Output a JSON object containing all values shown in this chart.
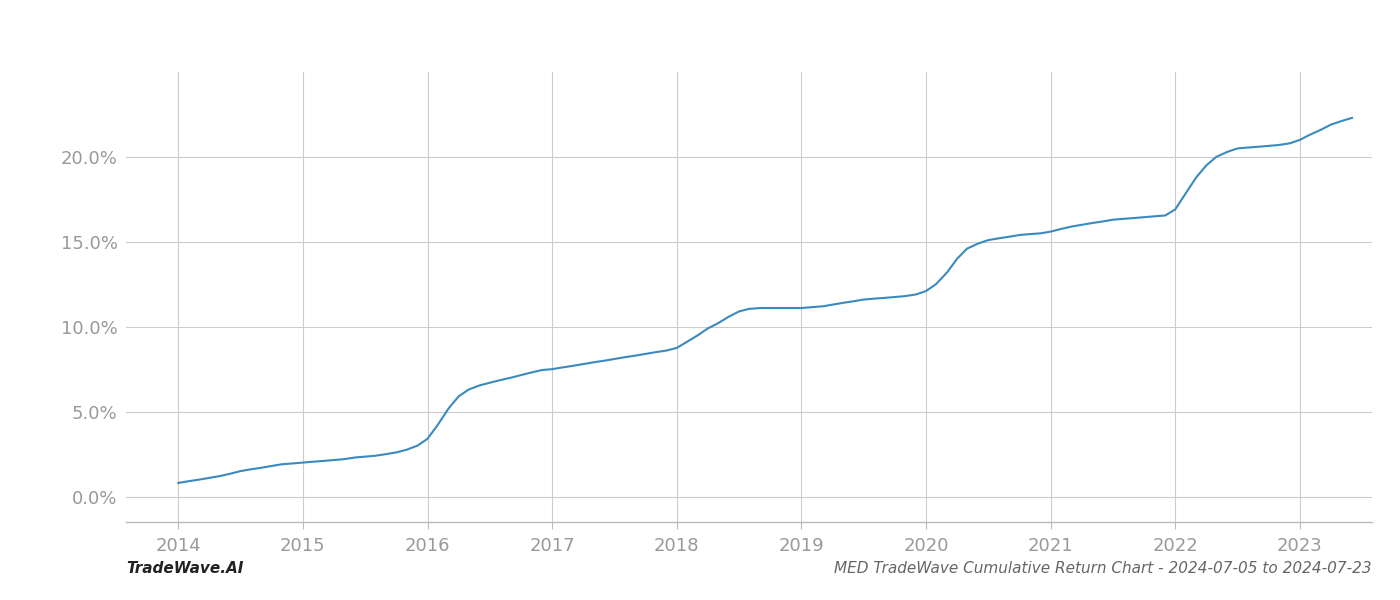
{
  "title": "",
  "footer_left": "TradeWave.AI",
  "footer_right": "MED TradeWave Cumulative Return Chart - 2024-07-05 to 2024-07-23",
  "line_color": "#3a8abf",
  "line_width": 1.5,
  "background_color": "#ffffff",
  "grid_color": "#cccccc",
  "x_values": [
    2014.0,
    2014.08,
    2014.17,
    2014.25,
    2014.33,
    2014.42,
    2014.5,
    2014.58,
    2014.67,
    2014.75,
    2014.83,
    2014.92,
    2015.0,
    2015.08,
    2015.17,
    2015.25,
    2015.33,
    2015.42,
    2015.5,
    2015.58,
    2015.67,
    2015.75,
    2015.83,
    2015.92,
    2016.0,
    2016.08,
    2016.17,
    2016.25,
    2016.33,
    2016.42,
    2016.5,
    2016.58,
    2016.67,
    2016.75,
    2016.83,
    2016.92,
    2017.0,
    2017.08,
    2017.17,
    2017.25,
    2017.33,
    2017.42,
    2017.5,
    2017.58,
    2017.67,
    2017.75,
    2017.83,
    2017.92,
    2018.0,
    2018.08,
    2018.17,
    2018.25,
    2018.33,
    2018.42,
    2018.5,
    2018.58,
    2018.67,
    2018.75,
    2018.83,
    2018.92,
    2019.0,
    2019.08,
    2019.17,
    2019.25,
    2019.33,
    2019.42,
    2019.5,
    2019.58,
    2019.67,
    2019.75,
    2019.83,
    2019.92,
    2020.0,
    2020.08,
    2020.17,
    2020.25,
    2020.33,
    2020.42,
    2020.5,
    2020.58,
    2020.67,
    2020.75,
    2020.83,
    2020.92,
    2021.0,
    2021.08,
    2021.17,
    2021.25,
    2021.33,
    2021.42,
    2021.5,
    2021.58,
    2021.67,
    2021.75,
    2021.83,
    2021.92,
    2022.0,
    2022.08,
    2022.17,
    2022.25,
    2022.33,
    2022.42,
    2022.5,
    2022.58,
    2022.67,
    2022.75,
    2022.83,
    2022.92,
    2023.0,
    2023.08,
    2023.17,
    2023.25,
    2023.33,
    2023.42
  ],
  "y_values": [
    0.8,
    0.9,
    1.0,
    1.1,
    1.2,
    1.35,
    1.5,
    1.6,
    1.7,
    1.8,
    1.9,
    1.95,
    2.0,
    2.05,
    2.1,
    2.15,
    2.2,
    2.3,
    2.35,
    2.4,
    2.5,
    2.6,
    2.75,
    3.0,
    3.4,
    4.2,
    5.2,
    5.9,
    6.3,
    6.55,
    6.7,
    6.85,
    7.0,
    7.15,
    7.3,
    7.45,
    7.5,
    7.6,
    7.7,
    7.8,
    7.9,
    8.0,
    8.1,
    8.2,
    8.3,
    8.4,
    8.5,
    8.6,
    8.75,
    9.1,
    9.5,
    9.9,
    10.2,
    10.6,
    10.9,
    11.05,
    11.1,
    11.1,
    11.1,
    11.1,
    11.1,
    11.15,
    11.2,
    11.3,
    11.4,
    11.5,
    11.6,
    11.65,
    11.7,
    11.75,
    11.8,
    11.9,
    12.1,
    12.5,
    13.2,
    14.0,
    14.6,
    14.9,
    15.1,
    15.2,
    15.3,
    15.4,
    15.45,
    15.5,
    15.6,
    15.75,
    15.9,
    16.0,
    16.1,
    16.2,
    16.3,
    16.35,
    16.4,
    16.45,
    16.5,
    16.55,
    16.9,
    17.8,
    18.8,
    19.5,
    20.0,
    20.3,
    20.5,
    20.55,
    20.6,
    20.65,
    20.7,
    20.8,
    21.0,
    21.3,
    21.6,
    21.9,
    22.1,
    22.3
  ],
  "xlim": [
    2013.58,
    2023.58
  ],
  "ylim": [
    -1.5,
    25.0
  ],
  "xticks": [
    2014,
    2015,
    2016,
    2017,
    2018,
    2019,
    2020,
    2021,
    2022,
    2023
  ],
  "yticks": [
    0.0,
    5.0,
    10.0,
    15.0,
    20.0
  ],
  "tick_label_color": "#999999",
  "tick_label_fontsize": 13,
  "footer_fontsize": 11,
  "footer_left_color": "#222222",
  "footer_right_color": "#666666"
}
